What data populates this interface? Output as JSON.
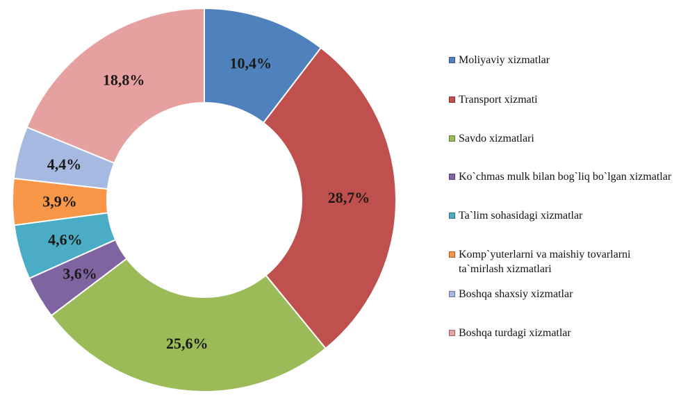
{
  "chart_data": {
    "type": "pie",
    "variant": "donut",
    "legend_position": "right",
    "categories": [
      "Moliyaviy xizmatlar",
      "Transport xizmati",
      "Savdo xizmatlari",
      "Ko`chmas mulk bilan bog`liq bo`lgan xizmatlar",
      "Ta`lim sohasidagi xizmatlar",
      "Komp`yuterlarni va maishiy tovarlarni ta`mirlash xizmatlari",
      "Boshqa shaxsiy xizmatlar",
      "Boshqa turdagi xizmatlar"
    ],
    "values": [
      10.4,
      28.7,
      25.6,
      3.6,
      4.6,
      3.9,
      4.4,
      18.8
    ],
    "labels": [
      "10,4%",
      "28,7%",
      "25,6%",
      "3,6%",
      "4,6%",
      "3,9%",
      "4,4%",
      "18,8%"
    ],
    "colors": [
      "#4F81BD",
      "#C0504D",
      "#9BBB59",
      "#8064A2",
      "#4BACC6",
      "#F79646",
      "#A6B9E0",
      "#E6A0A0"
    ]
  }
}
